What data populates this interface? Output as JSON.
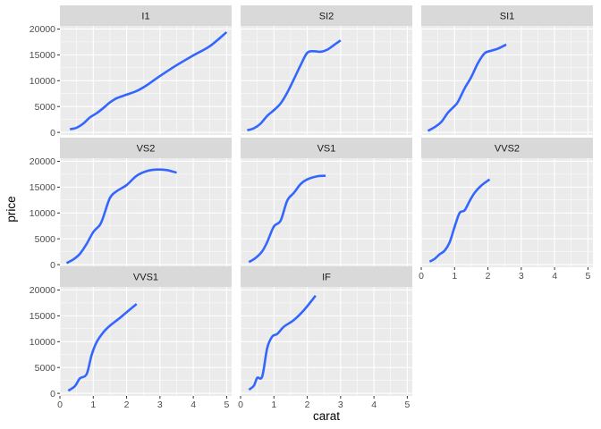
{
  "chart_data": {
    "type": "line",
    "facet_by": "clarity",
    "xlabel": "carat",
    "ylabel": "price",
    "xlim": [
      0,
      5.15
    ],
    "ylim": [
      -500,
      20600
    ],
    "x_ticks": [
      0,
      1,
      2,
      3,
      4,
      5
    ],
    "y_ticks": [
      0,
      5000,
      10000,
      15000,
      20000
    ],
    "x_tick_labels": [
      "0",
      "1",
      "2",
      "3",
      "4",
      "5"
    ],
    "y_tick_labels": [
      "0",
      "5000",
      "10000",
      "15000",
      "20000"
    ],
    "grid": true,
    "panels": [
      {
        "name": "I1",
        "points": [
          [
            0.3,
            600
          ],
          [
            0.5,
            900
          ],
          [
            0.7,
            1700
          ],
          [
            0.9,
            2900
          ],
          [
            1.1,
            3700
          ],
          [
            1.3,
            4700
          ],
          [
            1.5,
            5800
          ],
          [
            1.7,
            6600
          ],
          [
            2.0,
            7300
          ],
          [
            2.3,
            8000
          ],
          [
            2.6,
            9100
          ],
          [
            3.0,
            10900
          ],
          [
            3.5,
            13000
          ],
          [
            4.0,
            14900
          ],
          [
            4.5,
            16700
          ],
          [
            5.0,
            19400
          ]
        ]
      },
      {
        "name": "SI2",
        "points": [
          [
            0.2,
            400
          ],
          [
            0.4,
            800
          ],
          [
            0.6,
            1700
          ],
          [
            0.8,
            3200
          ],
          [
            1.0,
            4300
          ],
          [
            1.2,
            5600
          ],
          [
            1.4,
            7700
          ],
          [
            1.6,
            10300
          ],
          [
            1.8,
            13000
          ],
          [
            2.0,
            15400
          ],
          [
            2.2,
            15700
          ],
          [
            2.4,
            15600
          ],
          [
            2.6,
            16000
          ],
          [
            2.8,
            16900
          ],
          [
            3.0,
            17800
          ]
        ]
      },
      {
        "name": "SI1",
        "points": [
          [
            0.2,
            300
          ],
          [
            0.4,
            1000
          ],
          [
            0.6,
            2000
          ],
          [
            0.8,
            3800
          ],
          [
            1.0,
            5100
          ],
          [
            1.1,
            5900
          ],
          [
            1.3,
            8500
          ],
          [
            1.5,
            10700
          ],
          [
            1.7,
            13400
          ],
          [
            1.9,
            15300
          ],
          [
            2.1,
            15800
          ],
          [
            2.3,
            16200
          ],
          [
            2.55,
            17000
          ]
        ]
      },
      {
        "name": "VS2",
        "points": [
          [
            0.2,
            300
          ],
          [
            0.4,
            1000
          ],
          [
            0.6,
            2100
          ],
          [
            0.8,
            4000
          ],
          [
            1.0,
            6300
          ],
          [
            1.2,
            7700
          ],
          [
            1.3,
            9200
          ],
          [
            1.5,
            12900
          ],
          [
            1.7,
            14200
          ],
          [
            2.0,
            15400
          ],
          [
            2.3,
            17200
          ],
          [
            2.6,
            18100
          ],
          [
            2.9,
            18400
          ],
          [
            3.2,
            18300
          ],
          [
            3.5,
            17800
          ]
        ]
      },
      {
        "name": "VS1",
        "points": [
          [
            0.25,
            500
          ],
          [
            0.45,
            1300
          ],
          [
            0.65,
            2600
          ],
          [
            0.8,
            4400
          ],
          [
            1.0,
            7400
          ],
          [
            1.2,
            8500
          ],
          [
            1.4,
            12400
          ],
          [
            1.6,
            13900
          ],
          [
            1.8,
            15600
          ],
          [
            2.0,
            16500
          ],
          [
            2.3,
            17100
          ],
          [
            2.55,
            17200
          ]
        ]
      },
      {
        "name": "VVS2",
        "points": [
          [
            0.25,
            600
          ],
          [
            0.4,
            1100
          ],
          [
            0.55,
            2000
          ],
          [
            0.7,
            2700
          ],
          [
            0.85,
            4300
          ],
          [
            1.0,
            7300
          ],
          [
            1.15,
            10000
          ],
          [
            1.3,
            10500
          ],
          [
            1.45,
            12300
          ],
          [
            1.6,
            13900
          ],
          [
            1.8,
            15300
          ],
          [
            2.05,
            16500
          ]
        ]
      },
      {
        "name": "VVS1",
        "points": [
          [
            0.25,
            500
          ],
          [
            0.45,
            1400
          ],
          [
            0.6,
            2900
          ],
          [
            0.8,
            3700
          ],
          [
            0.95,
            7400
          ],
          [
            1.1,
            9900
          ],
          [
            1.3,
            11800
          ],
          [
            1.5,
            13100
          ],
          [
            1.8,
            14600
          ],
          [
            2.0,
            15700
          ],
          [
            2.3,
            17300
          ]
        ]
      },
      {
        "name": "IF",
        "points": [
          [
            0.25,
            700
          ],
          [
            0.4,
            1500
          ],
          [
            0.5,
            3000
          ],
          [
            0.65,
            3300
          ],
          [
            0.8,
            8800
          ],
          [
            0.95,
            11000
          ],
          [
            1.1,
            11500
          ],
          [
            1.3,
            12900
          ],
          [
            1.6,
            14200
          ],
          [
            1.9,
            16100
          ],
          [
            2.25,
            18900
          ]
        ]
      }
    ]
  }
}
